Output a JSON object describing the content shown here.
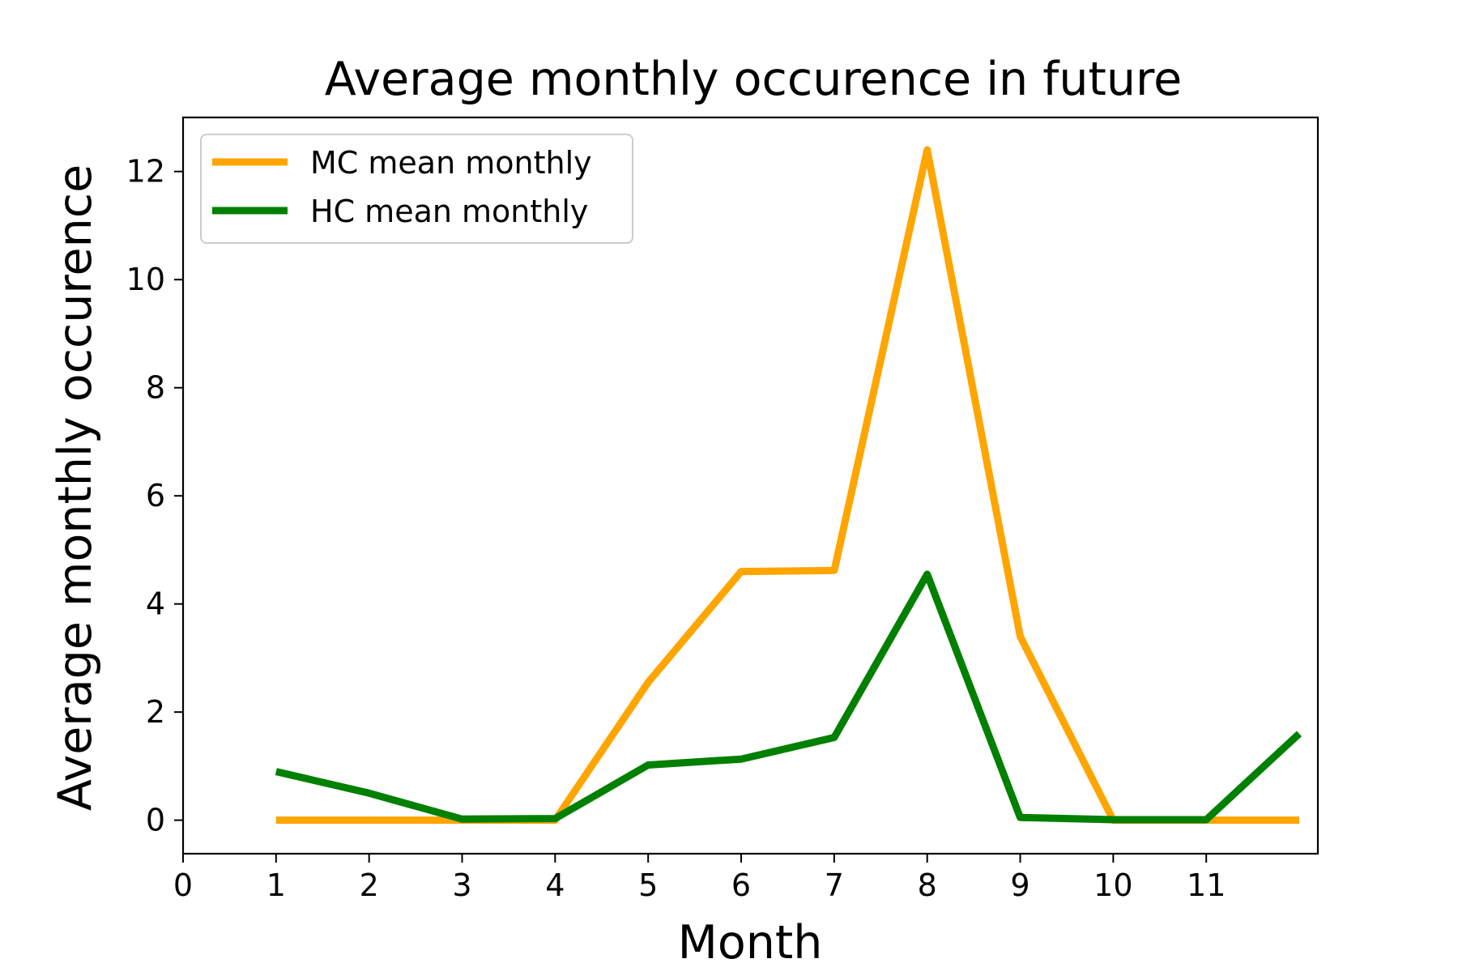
{
  "chart_data": {
    "type": "line",
    "title": "Average monthly occurence in future",
    "xlabel": "Month",
    "ylabel": "Average monthly occurence",
    "xlim": [
      0,
      12.2
    ],
    "ylim": [
      -0.62,
      13.0
    ],
    "xticks": [
      0,
      1,
      2,
      3,
      4,
      5,
      6,
      7,
      8,
      9,
      10,
      11
    ],
    "yticks": [
      0,
      2,
      4,
      6,
      8,
      10,
      12
    ],
    "grid": false,
    "legend_position": "top-left",
    "x": [
      1,
      2,
      3,
      4,
      5,
      6,
      7,
      8,
      9,
      10,
      11,
      12
    ],
    "series": [
      {
        "name": "MC mean monthly",
        "color": "#ffa500",
        "values": [
          0,
          0,
          0,
          0,
          2.55,
          4.6,
          4.62,
          12.4,
          3.4,
          0,
          0,
          0
        ]
      },
      {
        "name": "HC mean monthly",
        "color": "#008000",
        "values": [
          0.9,
          0.5,
          0.02,
          0.03,
          1.02,
          1.13,
          1.53,
          4.55,
          0.05,
          0.01,
          0.01,
          1.6
        ]
      }
    ]
  }
}
